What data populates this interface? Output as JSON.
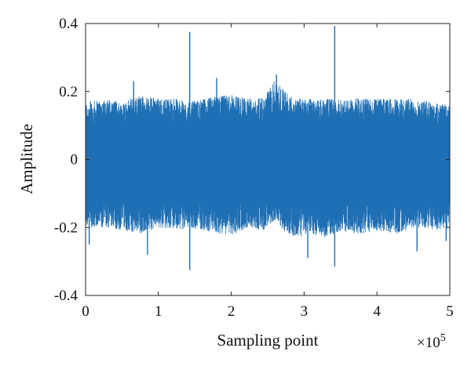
{
  "chart_data": {
    "type": "line",
    "title": "",
    "xlabel": "Sampling point",
    "ylabel": "Amplitude",
    "x_exponent_label": "×10",
    "x_exponent_power": "5",
    "xlim": [
      0,
      500000
    ],
    "ylim": [
      -0.4,
      0.4
    ],
    "xticks": [
      0,
      100000,
      200000,
      300000,
      400000,
      500000
    ],
    "xtick_labels": [
      "0",
      "1",
      "2",
      "3",
      "4",
      "5"
    ],
    "yticks": [
      -0.4,
      -0.2,
      0,
      0.2,
      0.4
    ],
    "ytick_labels": [
      "-0.4",
      "-0.2",
      "0",
      "0.2",
      "0.4"
    ],
    "grid": false,
    "series": [
      {
        "color": "#1f6fb4",
        "description": "dense noisy vibration signal",
        "envelope": {
          "x": [
            0,
            25000,
            50000,
            75000,
            100000,
            125000,
            140000,
            165000,
            185000,
            205000,
            225000,
            245000,
            260000,
            270000,
            290000,
            310000,
            330000,
            350000,
            375000,
            400000,
            425000,
            450000,
            475000,
            500000
          ],
          "upper": [
            0.17,
            0.18,
            0.17,
            0.19,
            0.18,
            0.18,
            0.17,
            0.18,
            0.19,
            0.19,
            0.18,
            0.18,
            0.24,
            0.21,
            0.18,
            0.18,
            0.18,
            0.18,
            0.18,
            0.18,
            0.18,
            0.18,
            0.17,
            0.16
          ],
          "lower": [
            -0.2,
            -0.2,
            -0.21,
            -0.22,
            -0.2,
            -0.21,
            -0.2,
            -0.21,
            -0.22,
            -0.22,
            -0.2,
            -0.21,
            -0.18,
            -0.21,
            -0.23,
            -0.22,
            -0.23,
            -0.21,
            -0.22,
            -0.21,
            -0.22,
            -0.2,
            -0.21,
            -0.2
          ]
        },
        "spikes": [
          {
            "x": 143000,
            "y": 0.375
          },
          {
            "x": 143000,
            "y": -0.325
          },
          {
            "x": 342000,
            "y": 0.393
          },
          {
            "x": 342000,
            "y": -0.315
          },
          {
            "x": 262000,
            "y": 0.25
          },
          {
            "x": 85000,
            "y": -0.28
          },
          {
            "x": 180000,
            "y": 0.24
          },
          {
            "x": 305000,
            "y": -0.29
          },
          {
            "x": 5000,
            "y": -0.25
          },
          {
            "x": 66000,
            "y": 0.23
          },
          {
            "x": 455000,
            "y": -0.27
          },
          {
            "x": 495000,
            "y": -0.24
          }
        ]
      }
    ]
  }
}
